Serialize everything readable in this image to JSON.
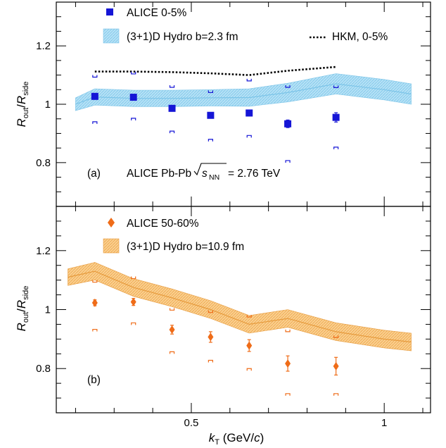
{
  "chart_data": [
    {
      "panel": "(a)",
      "type": "scatter",
      "ylabel": "R_out/R_side",
      "ylim": [
        0.65,
        1.35
      ],
      "xlim": [
        0.15,
        1.12
      ],
      "annotation": "ALICE Pb-Pb",
      "energy": "= 2.76 TeV",
      "legend": {
        "data": "ALICE 0-5%",
        "band": "(3+1)D Hydro b=2.3 fm",
        "line": "HKM, 0-5%"
      },
      "colors": {
        "data": "#1515d6",
        "band_fill": "#a7dcf3",
        "band_line": "#7cc4e8",
        "line": "#000000"
      },
      "series": [
        {
          "name": "ALICE 0-5%",
          "x": [
            0.25,
            0.35,
            0.45,
            0.55,
            0.65,
            0.75,
            0.875
          ],
          "y": [
            1.027,
            1.024,
            0.986,
            0.962,
            0.97,
            0.933,
            0.955
          ],
          "stat_err": [
            0.006,
            0.006,
            0.006,
            0.007,
            0.009,
            0.013,
            0.016
          ],
          "sys_low": [
            0.94,
            0.952,
            0.908,
            0.88,
            0.893,
            0.807,
            0.853
          ],
          "sys_high": [
            1.093,
            1.104,
            1.058,
            1.04,
            1.08,
            1.058,
            1.057
          ]
        },
        {
          "name": "(3+1)D Hydro b=2.3 fm",
          "x": [
            0.2,
            0.25,
            0.35,
            0.45,
            0.55,
            0.65,
            0.75,
            0.875,
            1.0,
            1.07
          ],
          "y": [
            1.0,
            1.025,
            1.02,
            1.02,
            1.022,
            1.023,
            1.04,
            1.07,
            1.05,
            1.035
          ],
          "half_width": [
            0.022,
            0.028,
            0.028,
            0.028,
            0.028,
            0.03,
            0.032,
            0.035,
            0.035,
            0.035
          ]
        },
        {
          "name": "HKM, 0-5%",
          "x": [
            0.25,
            0.35,
            0.45,
            0.55,
            0.65,
            0.75,
            0.875
          ],
          "y": [
            1.112,
            1.112,
            1.11,
            1.106,
            1.1,
            1.115,
            1.128
          ]
        }
      ]
    },
    {
      "panel": "(b)",
      "type": "scatter",
      "xlabel": "k_T (GeV/c)",
      "ylabel": "R_out/R_side",
      "ylim": [
        0.65,
        1.35
      ],
      "xlim": [
        0.15,
        1.12
      ],
      "legend": {
        "data": "ALICE 50-60%",
        "band": "(3+1)D Hydro b=10.9 fm"
      },
      "colors": {
        "data": "#ef6c18",
        "band_fill": "#f8c878",
        "band_line": "#e69a3c"
      },
      "series": [
        {
          "name": "ALICE 50-60%",
          "x": [
            0.25,
            0.35,
            0.45,
            0.55,
            0.65,
            0.75,
            0.875
          ],
          "y": [
            1.023,
            1.026,
            0.932,
            0.907,
            0.878,
            0.817,
            0.808
          ],
          "stat_err": [
            0.01,
            0.012,
            0.015,
            0.018,
            0.02,
            0.026,
            0.03
          ],
          "sys_low": [
            0.933,
            0.955,
            0.857,
            0.828,
            0.8,
            0.715,
            0.715
          ],
          "sys_high": [
            1.093,
            1.105,
            0.998,
            0.99,
            0.975,
            0.925,
            0.905
          ]
        },
        {
          "name": "(3+1)D Hydro b=10.9 fm",
          "x": [
            0.18,
            0.25,
            0.35,
            0.45,
            0.55,
            0.65,
            0.75,
            0.875,
            1.0,
            1.07
          ],
          "y": [
            1.11,
            1.13,
            1.075,
            1.04,
            1.0,
            0.95,
            0.97,
            0.925,
            0.9,
            0.89
          ],
          "half_width": [
            0.028,
            0.03,
            0.03,
            0.03,
            0.03,
            0.03,
            0.03,
            0.03,
            0.03,
            0.03
          ]
        }
      ]
    }
  ],
  "x_ticks": [
    0.5,
    1
  ],
  "x_tick_labels": [
    "0.5",
    "1"
  ],
  "y_ticks": [
    0.8,
    1,
    1.2
  ],
  "y_tick_labels": [
    "0.8",
    "1",
    "1.2"
  ]
}
